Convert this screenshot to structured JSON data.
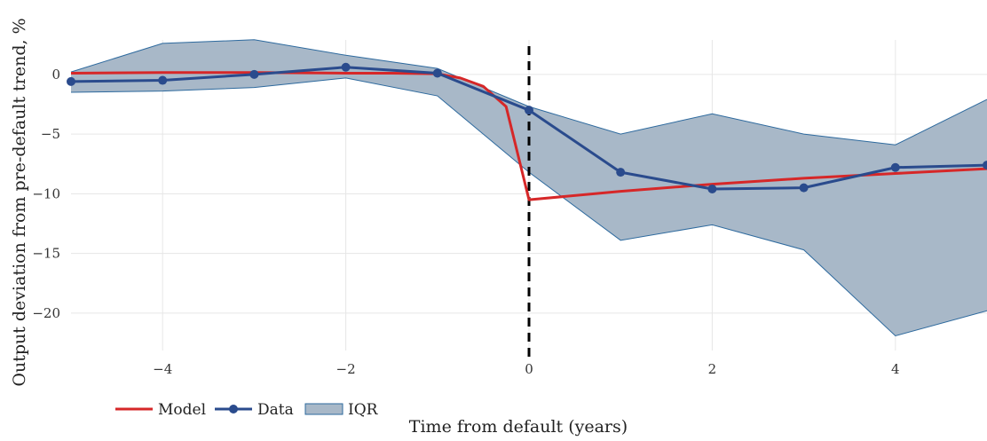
{
  "chart_data": {
    "type": "line",
    "xlabel": "Time from default (years)",
    "ylabel": "Output deviation from pre-default trend, %",
    "xlim": [
      -5,
      5
    ],
    "ylim": [
      -23.5,
      4
    ],
    "x_ticks": [
      -4,
      -2,
      0,
      2,
      4
    ],
    "x_tick_labels": [
      "−4",
      "−2",
      "0",
      "2",
      "4"
    ],
    "y_ticks": [
      0,
      -5,
      -10,
      -15,
      -20
    ],
    "y_tick_labels": [
      "0",
      "−5",
      "−10",
      "−15",
      "−20"
    ],
    "grid": true,
    "vline": {
      "x": 0,
      "style": "dashed",
      "color": "#000000"
    },
    "legend_position": "bottom-left",
    "series": [
      {
        "name": "Model",
        "kind": "line",
        "color": "#d62728",
        "x": [
          -5,
          -4,
          -3,
          -2,
          -1.5,
          -1,
          -0.75,
          -0.5,
          -0.25,
          0,
          1,
          2,
          3,
          4,
          5
        ],
        "y": [
          0.1,
          0.15,
          0.15,
          0.1,
          0.1,
          0.05,
          -0.3,
          -1.0,
          -2.7,
          -10.5,
          -9.8,
          -9.2,
          -8.7,
          -8.3,
          -7.9
        ]
      },
      {
        "name": "Data",
        "kind": "line-marker",
        "color": "#2a4b8d",
        "x": [
          -5,
          -4,
          -3,
          -2,
          -1,
          0,
          1,
          2,
          3,
          4,
          5
        ],
        "y": [
          -0.6,
          -0.5,
          0.0,
          0.6,
          0.1,
          -3.0,
          -8.2,
          -9.6,
          -9.5,
          -7.8,
          -7.6
        ]
      },
      {
        "name": "IQR",
        "kind": "band",
        "color": "#a8b8c8",
        "edge_color": "#2e6a9e",
        "x": [
          -5,
          -4,
          -3,
          -2,
          -1,
          0,
          1,
          2,
          3,
          4,
          5
        ],
        "lower": [
          -1.5,
          -1.4,
          -1.1,
          -0.3,
          -1.8,
          -8.2,
          -13.9,
          -12.6,
          -14.7,
          -21.9,
          -19.8
        ],
        "upper": [
          0.2,
          2.6,
          2.9,
          1.6,
          0.5,
          -2.7,
          -5.0,
          -3.3,
          -5.0,
          -5.9,
          -2.1
        ]
      }
    ]
  }
}
